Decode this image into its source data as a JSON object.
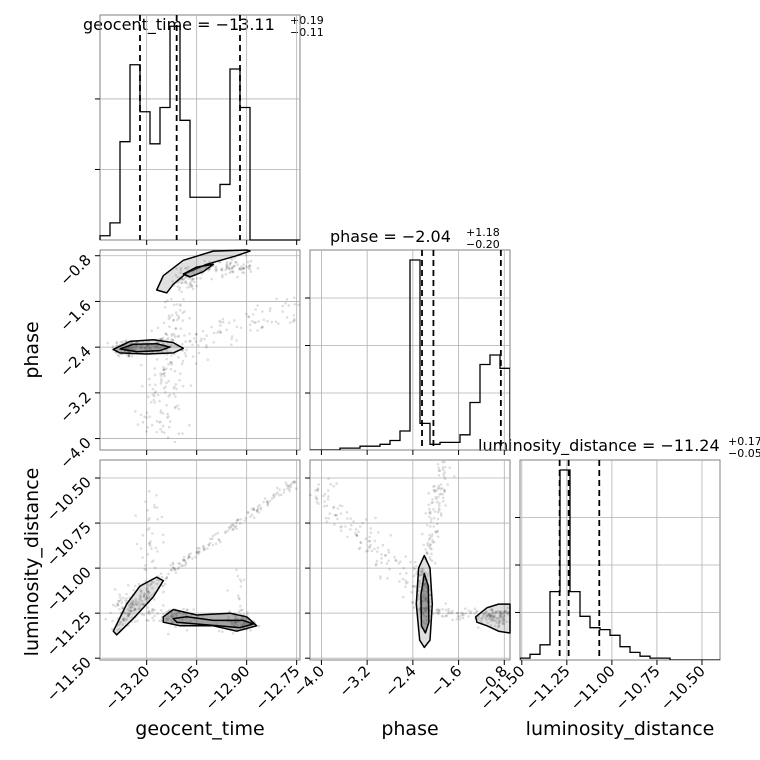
{
  "colors": {
    "line": "#000000",
    "grid": "#b0b0b0",
    "frame": "#808080",
    "contour_fill": "#555555",
    "background": "#ffffff"
  },
  "chart_data": {
    "type": "corner",
    "parameters": [
      "geocent_time",
      "phase",
      "luminosity_distance"
    ],
    "titles": [
      {
        "prefix": "geocent_time = −13.11",
        "upper": "+0.19",
        "lower": "−0.11"
      },
      {
        "prefix": "phase = −2.04",
        "upper": "+1.18",
        "lower": "−0.20"
      },
      {
        "prefix": "luminosity_distance = −11.24",
        "upper": "+0.17",
        "lower": "−0.05"
      }
    ],
    "axis_labels": {
      "x": [
        "geocent_time",
        "phase",
        "luminosity_distance"
      ],
      "y": [
        "phase",
        "luminosity_distance"
      ]
    },
    "ranges": [
      [
        -13.34,
        -12.74
      ],
      [
        -4.2,
        -0.7
      ],
      [
        -11.51,
        -10.4
      ]
    ],
    "ticks": [
      {
        "values": [
          -13.2,
          -13.05,
          -12.9,
          -12.75
        ],
        "labels": [
          "−13.20",
          "−13.05",
          "−12.90",
          "−12.75"
        ]
      },
      {
        "values": [
          -4.0,
          -3.2,
          -2.4,
          -1.6,
          -0.8
        ],
        "labels": [
          "−4.0",
          "−3.2",
          "−2.4",
          "−1.6",
          "−0.8"
        ]
      },
      {
        "values": [
          -11.5,
          -11.25,
          -11.0,
          -10.75,
          -10.5
        ],
        "labels": [
          "−11.50",
          "−11.25",
          "−11.00",
          "−10.75",
          "−10.50"
        ]
      }
    ],
    "quantile_lines": [
      [
        -13.22,
        -13.11,
        -12.92
      ],
      [
        -2.24,
        -2.04,
        -0.86
      ],
      [
        -11.29,
        -11.24,
        -11.07
      ]
    ],
    "histograms": [
      {
        "param": "geocent_time",
        "bin_edges": [
          -13.34,
          -13.31,
          -13.28,
          -13.25,
          -13.22,
          -13.19,
          -13.16,
          -13.13,
          -13.1,
          -13.07,
          -13.04,
          -13.01,
          -12.98,
          -12.95,
          -12.92,
          -12.89,
          -12.86,
          -12.83,
          -12.8,
          -12.77,
          -12.74
        ],
        "counts": [
          0.02,
          0.08,
          0.46,
          0.82,
          0.6,
          0.45,
          0.62,
          1.0,
          0.56,
          0.2,
          0.2,
          0.2,
          0.26,
          0.8,
          0.62,
          0.0,
          0.0,
          0.0,
          0.0,
          0.0
        ],
        "grid_y": [
          0.33,
          0.66
        ]
      },
      {
        "param": "phase",
        "bin_edges": [
          -4.2,
          -4.025,
          -3.85,
          -3.675,
          -3.5,
          -3.325,
          -3.15,
          -2.975,
          -2.8,
          -2.625,
          -2.45,
          -2.275,
          -2.1,
          -1.925,
          -1.75,
          -1.575,
          -1.4,
          -1.225,
          -1.05,
          -0.875,
          -0.7
        ],
        "counts": [
          0.0,
          0.0,
          0.0,
          0.01,
          0.01,
          0.02,
          0.02,
          0.03,
          0.05,
          0.1,
          1.0,
          0.14,
          0.03,
          0.04,
          0.04,
          0.08,
          0.25,
          0.45,
          0.5,
          0.43
        ],
        "grid_y": [
          0.3,
          0.55,
          0.8
        ]
      },
      {
        "param": "luminosity_distance",
        "bin_edges": [
          -11.51,
          -11.4545,
          -11.399,
          -11.3435,
          -11.288,
          -11.2325,
          -11.177,
          -11.1215,
          -11.066,
          -11.0105,
          -10.955,
          -10.8995,
          -10.844,
          -10.7885,
          -10.733,
          -10.6775,
          -10.622,
          -10.5665,
          -10.511,
          -10.4555,
          -10.4
        ],
        "counts": [
          0.01,
          0.03,
          0.08,
          0.36,
          1.0,
          0.36,
          0.23,
          0.17,
          0.16,
          0.13,
          0.07,
          0.04,
          0.02,
          0.01,
          0.01,
          0.0,
          0.0,
          0.0,
          0.0,
          0.0
        ],
        "grid_y": [
          0.25,
          0.5,
          0.75
        ]
      }
    ],
    "scatter_panels": [
      {
        "x_param": "geocent_time",
        "y_param": "phase",
        "clusters": [
          {
            "type": "blob",
            "center": [
              -13.26,
              -2.42
            ],
            "spread": [
              0.022,
              0.08
            ],
            "n": 130
          },
          {
            "type": "blob",
            "center": [
              -13.17,
              -2.38
            ],
            "spread": [
              0.03,
              0.08
            ],
            "n": 80
          },
          {
            "type": "blob",
            "center": [
              -12.95,
              -1.0
            ],
            "spread": [
              0.035,
              0.09
            ],
            "n": 80
          },
          {
            "type": "blob",
            "center": [
              -13.08,
              -1.2
            ],
            "spread": [
              0.02,
              0.1
            ],
            "n": 60
          },
          {
            "type": "band",
            "from": [
              -13.1,
              -2.35
            ],
            "to": [
              -12.74,
              -1.7
            ],
            "width": 0.04,
            "n": 80
          },
          {
            "type": "band",
            "from": [
              -13.12,
              -2.4
            ],
            "to": [
              -13.18,
              -4.0
            ],
            "width": 0.06,
            "n": 110
          },
          {
            "type": "band",
            "from": [
              -13.11,
              -1.55
            ],
            "to": [
              -13.12,
              -2.4
            ],
            "width": 0.04,
            "n": 50
          }
        ],
        "contours": [
          [
            [
              -13.3,
              -2.44
            ],
            [
              -13.25,
              -2.3
            ],
            [
              -13.18,
              -2.27
            ],
            [
              -13.12,
              -2.32
            ],
            [
              -13.09,
              -2.42
            ],
            [
              -13.12,
              -2.5
            ],
            [
              -13.2,
              -2.52
            ],
            [
              -13.28,
              -2.5
            ]
          ],
          [
            [
              -13.28,
              -2.43
            ],
            [
              -13.24,
              -2.35
            ],
            [
              -13.17,
              -2.34
            ],
            [
              -13.13,
              -2.4
            ],
            [
              -13.16,
              -2.46
            ],
            [
              -13.23,
              -2.48
            ]
          ],
          [
            [
              -13.14,
              -1.45
            ],
            [
              -13.12,
              -1.3
            ],
            [
              -13.08,
              -1.1
            ],
            [
              -13.02,
              -0.95
            ],
            [
              -12.93,
              -0.8
            ],
            [
              -12.89,
              -0.72
            ],
            [
              -12.9,
              -0.7
            ],
            [
              -13.0,
              -0.72
            ],
            [
              -13.09,
              -0.88
            ],
            [
              -13.15,
              -1.15
            ],
            [
              -13.17,
              -1.4
            ]
          ],
          [
            [
              -13.09,
              -1.12
            ],
            [
              -13.05,
              -1.0
            ],
            [
              -13.0,
              -0.95
            ],
            [
              -13.03,
              -1.08
            ],
            [
              -13.07,
              -1.17
            ]
          ]
        ]
      },
      {
        "x_param": "geocent_time",
        "y_param": "luminosity_distance",
        "clusters": [
          {
            "type": "blob",
            "center": [
              -13.24,
              -11.2
            ],
            "spread": [
              0.03,
              0.05
            ],
            "n": 90
          },
          {
            "type": "blob",
            "center": [
              -13.12,
              -11.27
            ],
            "spread": [
              0.03,
              0.025
            ],
            "n": 80
          },
          {
            "type": "blob",
            "center": [
              -12.92,
              -11.3
            ],
            "spread": [
              0.03,
              0.025
            ],
            "n": 80
          },
          {
            "type": "band",
            "from": [
              -13.15,
              -11.05
            ],
            "to": [
              -12.74,
              -10.5
            ],
            "width": 0.012,
            "n": 140
          },
          {
            "type": "band",
            "from": [
              -13.3,
              -11.35
            ],
            "to": [
              -13.15,
              -11.05
            ],
            "width": 0.02,
            "n": 80
          },
          {
            "type": "band",
            "from": [
              -13.18,
              -10.55
            ],
            "to": [
              -13.2,
              -11.1
            ],
            "width": 0.03,
            "n": 40
          },
          {
            "type": "band",
            "from": [
              -12.92,
              -11.0
            ],
            "to": [
              -12.92,
              -11.3
            ],
            "width": 0.02,
            "n": 20
          }
        ],
        "contours": [
          [
            [
              -13.3,
              -11.35
            ],
            [
              -13.26,
              -11.2
            ],
            [
              -13.22,
              -11.1
            ],
            [
              -13.17,
              -11.05
            ],
            [
              -13.15,
              -11.07
            ],
            [
              -13.18,
              -11.16
            ],
            [
              -13.24,
              -11.28
            ],
            [
              -13.29,
              -11.37
            ]
          ],
          [
            [
              -13.15,
              -11.27
            ],
            [
              -13.12,
              -11.23
            ],
            [
              -13.05,
              -11.26
            ],
            [
              -12.95,
              -11.25
            ],
            [
              -12.9,
              -11.27
            ],
            [
              -12.87,
              -11.32
            ],
            [
              -12.93,
              -11.35
            ],
            [
              -13.0,
              -11.32
            ],
            [
              -13.1,
              -11.32
            ],
            [
              -13.15,
              -11.3
            ]
          ],
          [
            [
              -13.12,
              -11.28
            ],
            [
              -13.08,
              -11.27
            ],
            [
              -13.0,
              -11.29
            ],
            [
              -12.91,
              -11.29
            ],
            [
              -12.88,
              -11.31
            ],
            [
              -12.92,
              -11.33
            ],
            [
              -13.05,
              -11.31
            ],
            [
              -13.11,
              -11.3
            ]
          ]
        ]
      },
      {
        "x_param": "phase",
        "y_param": "luminosity_distance",
        "clusters": [
          {
            "type": "blob",
            "center": [
              -2.2,
              -11.18
            ],
            "spread": [
              0.08,
              0.07
            ],
            "n": 130
          },
          {
            "type": "blob",
            "center": [
              -0.95,
              -11.27
            ],
            "spread": [
              0.15,
              0.025
            ],
            "n": 80
          },
          {
            "type": "band",
            "from": [
              -2.1,
              -11.25
            ],
            "to": [
              -0.7,
              -11.25
            ],
            "width": 0.015,
            "n": 70
          },
          {
            "type": "band",
            "from": [
              -2.22,
              -11.05
            ],
            "to": [
              -1.85,
              -10.4
            ],
            "width": 0.02,
            "n": 120
          },
          {
            "type": "band",
            "from": [
              -2.3,
              -11.1
            ],
            "to": [
              -4.2,
              -10.55
            ],
            "width": 0.04,
            "n": 130
          }
        ],
        "contours": [
          [
            [
              -2.28,
              -11.4
            ],
            [
              -2.34,
              -11.2
            ],
            [
              -2.3,
              -11.0
            ],
            [
              -2.2,
              -10.93
            ],
            [
              -2.1,
              -11.0
            ],
            [
              -2.06,
              -11.2
            ],
            [
              -2.1,
              -11.4
            ],
            [
              -2.2,
              -11.44
            ]
          ],
          [
            [
              -2.25,
              -11.32
            ],
            [
              -2.26,
              -11.15
            ],
            [
              -2.2,
              -11.03
            ],
            [
              -2.13,
              -11.1
            ],
            [
              -2.12,
              -11.3
            ],
            [
              -2.18,
              -11.36
            ]
          ],
          [
            [
              -1.3,
              -11.27
            ],
            [
              -1.1,
              -11.22
            ],
            [
              -0.9,
              -11.2
            ],
            [
              -0.7,
              -11.2
            ],
            [
              -0.7,
              -11.36
            ],
            [
              -0.9,
              -11.35
            ],
            [
              -1.1,
              -11.32
            ],
            [
              -1.28,
              -11.3
            ]
          ]
        ]
      }
    ]
  }
}
